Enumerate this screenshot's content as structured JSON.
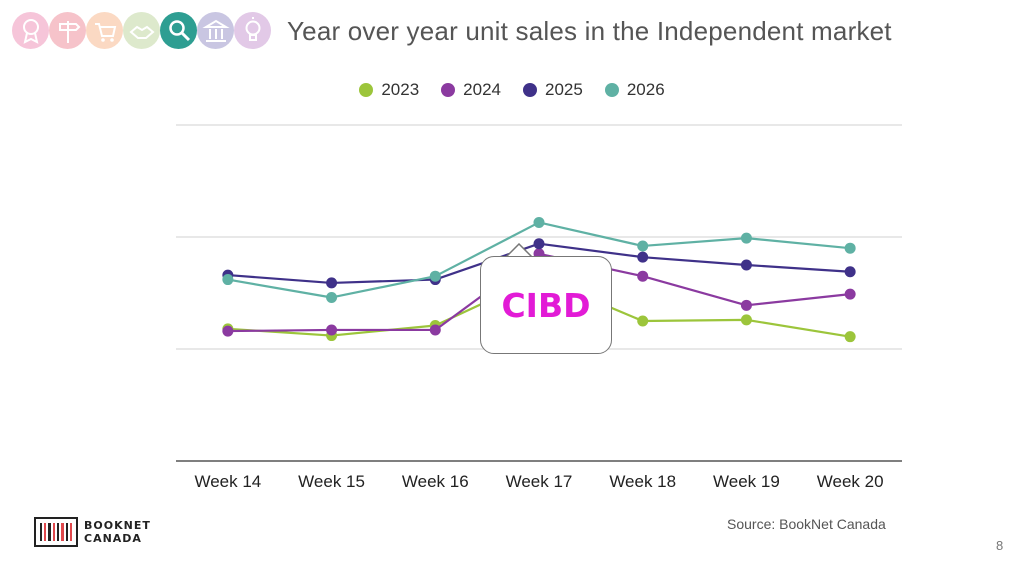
{
  "header": {
    "title": "Year over year unit sales in the Independent market",
    "icons": [
      {
        "name": "award-icon",
        "color": "#f6c5d9"
      },
      {
        "name": "signpost-icon",
        "color": "#f6c3ca"
      },
      {
        "name": "shopping-cart-icon",
        "color": "#fbd9c3"
      },
      {
        "name": "handshake-icon",
        "color": "#dde9cc"
      },
      {
        "name": "magnifier-icon",
        "color": "#2e9e92"
      },
      {
        "name": "library-icon",
        "color": "#c9c6e2"
      },
      {
        "name": "lightbulb-icon",
        "color": "#e2c9e7"
      }
    ]
  },
  "chart_data": {
    "type": "line",
    "categories": [
      "Week 14",
      "Week 15",
      "Week 16",
      "Week 17",
      "Week 18",
      "Week 19",
      "Week 20"
    ],
    "series": [
      {
        "name": "2023",
        "color": "#9cc53b",
        "values": [
          1.18,
          1.12,
          1.21,
          1.64,
          1.25,
          1.26,
          1.11
        ]
      },
      {
        "name": "2024",
        "color": "#8b3aa0",
        "values": [
          1.16,
          1.17,
          1.17,
          1.85,
          1.65,
          1.39,
          1.49
        ]
      },
      {
        "name": "2025",
        "color": "#3f3189",
        "values": [
          1.66,
          1.59,
          1.62,
          1.94,
          1.82,
          1.75,
          1.69
        ]
      },
      {
        "name": "2026",
        "color": "#5fb1a4",
        "values": [
          1.62,
          1.46,
          1.65,
          2.13,
          1.92,
          1.99,
          1.9
        ]
      }
    ],
    "ylim": [
      0,
      3
    ],
    "grid": true,
    "legend_position": "top-center",
    "annotation": "CIBD"
  },
  "footer": {
    "source": "Source: BookNet Canada",
    "page_number": "8",
    "logo_line1": "BOOKNET",
    "logo_line2": "CANADA"
  }
}
